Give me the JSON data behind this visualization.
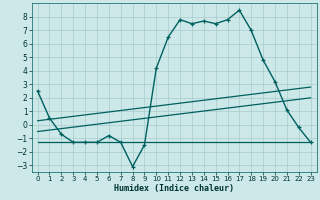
{
  "xlabel": "Humidex (Indice chaleur)",
  "ylabel": "",
  "background_color": "#cce8e8",
  "grid_color": "#aacccc",
  "line_color": "#006060",
  "xlim": [
    -0.5,
    23.5
  ],
  "ylim": [
    -3.5,
    9.0
  ],
  "yticks": [
    -3,
    -2,
    -1,
    0,
    1,
    2,
    3,
    4,
    5,
    6,
    7,
    8
  ],
  "xticks": [
    0,
    1,
    2,
    3,
    4,
    5,
    6,
    7,
    8,
    9,
    10,
    11,
    12,
    13,
    14,
    15,
    16,
    17,
    18,
    19,
    20,
    21,
    22,
    23
  ],
  "main_x": [
    0,
    1,
    2,
    3,
    4,
    5,
    6,
    7,
    8,
    9,
    10,
    11,
    12,
    13,
    14,
    15,
    16,
    17,
    18,
    19,
    20,
    21,
    22,
    23
  ],
  "main_y": [
    2.5,
    0.5,
    -0.7,
    -1.3,
    -1.3,
    -1.3,
    -0.8,
    -1.3,
    -3.1,
    -1.5,
    4.2,
    6.5,
    7.8,
    7.5,
    7.7,
    7.5,
    7.8,
    8.5,
    7.0,
    4.8,
    3.2,
    1.1,
    -0.2,
    -1.3
  ],
  "line1_x": [
    0,
    23
  ],
  "line1_y": [
    0.3,
    2.8
  ],
  "line2_x": [
    0,
    23
  ],
  "line2_y": [
    -0.5,
    2.0
  ],
  "line3_x": [
    0,
    23
  ],
  "line3_y": [
    -1.3,
    -1.3
  ]
}
